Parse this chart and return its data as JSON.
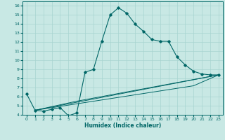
{
  "xlabel": "Humidex (Indice chaleur)",
  "bg_color": "#c8e8e4",
  "line_color": "#006666",
  "grid_color": "#a8d4d0",
  "xlim": [
    -0.5,
    23.5
  ],
  "ylim": [
    4,
    16.5
  ],
  "xticks": [
    0,
    1,
    2,
    3,
    4,
    5,
    6,
    7,
    8,
    9,
    10,
    11,
    12,
    13,
    14,
    15,
    16,
    17,
    18,
    19,
    20,
    21,
    22,
    23
  ],
  "yticks": [
    4,
    5,
    6,
    7,
    8,
    9,
    10,
    11,
    12,
    13,
    14,
    15,
    16
  ],
  "main_line": {
    "x": [
      0,
      1,
      2,
      3,
      4,
      5,
      6,
      7,
      8,
      9,
      10,
      11,
      12,
      13,
      14,
      15,
      16,
      17,
      18,
      19,
      20,
      21,
      22,
      23
    ],
    "y": [
      6.3,
      4.5,
      4.4,
      4.6,
      4.8,
      3.9,
      4.2,
      8.7,
      9.0,
      12.1,
      15.0,
      15.8,
      15.2,
      14.0,
      13.2,
      12.3,
      12.1,
      12.1,
      10.4,
      9.5,
      8.8,
      8.5,
      8.4,
      8.4
    ]
  },
  "linear_lines": [
    {
      "x": [
        1,
        23
      ],
      "y": [
        4.5,
        8.4
      ]
    },
    {
      "x": [
        1,
        20,
        23
      ],
      "y": [
        4.5,
        7.2,
        8.4
      ]
    },
    {
      "x": [
        1,
        6,
        23
      ],
      "y": [
        4.5,
        5.5,
        8.4
      ]
    }
  ]
}
